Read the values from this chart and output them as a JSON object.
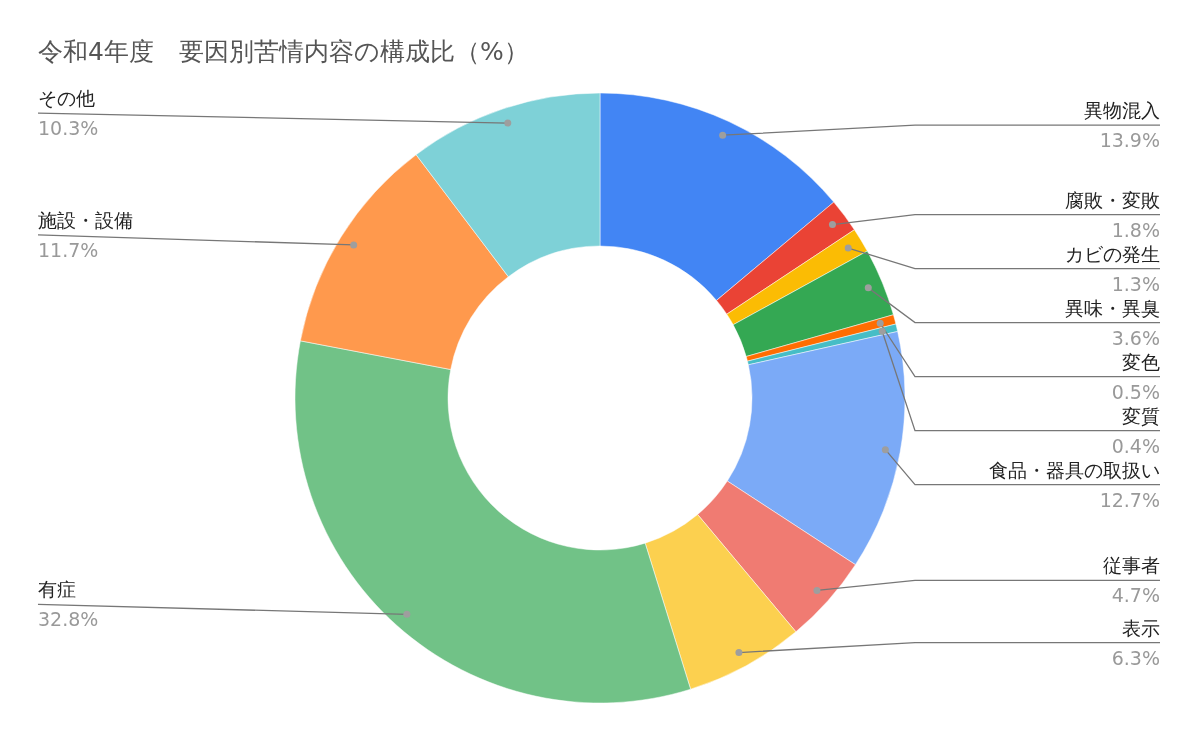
{
  "chart_data": {
    "type": "donut",
    "title": "令和4年度　要因別苦情内容の構成比（%）",
    "categories": [
      "異物混入",
      "腐敗・変敗",
      "カビの発生",
      "異味・異臭",
      "変色",
      "変質",
      "食品・器具の取扱い",
      "従事者",
      "表示",
      "有症",
      "施設・設備",
      "その他"
    ],
    "values": [
      13.9,
      1.8,
      1.3,
      3.6,
      0.5,
      0.4,
      12.7,
      4.7,
      6.3,
      32.8,
      11.7,
      10.3
    ],
    "colors": [
      "#4285f4",
      "#ea4335",
      "#fbbc04",
      "#34a853",
      "#ff6d01",
      "#46bdc6",
      "#7baaf7",
      "#f07b72",
      "#fcd04f",
      "#71c287",
      "#ff994d",
      "#7ed1d7"
    ],
    "value_labels": [
      "13.9%",
      "1.8%",
      "1.3%",
      "3.6%",
      "0.5%",
      "0.4%",
      "12.7%",
      "4.7%",
      "6.3%",
      "32.8%",
      "11.7%",
      "10.3%"
    ],
    "legend": false
  }
}
